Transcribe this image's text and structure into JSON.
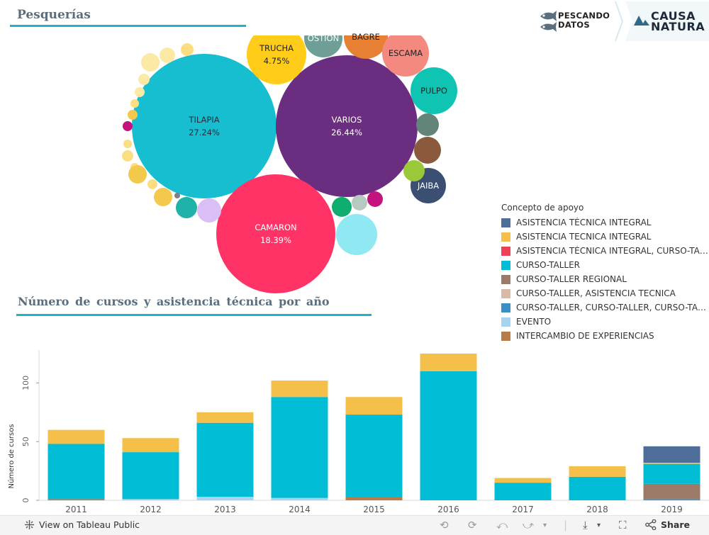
{
  "section1": {
    "title": "Pesquerías"
  },
  "section2": {
    "title": "Número de cursos y asistencia técnica por año"
  },
  "logos": {
    "pescando_line1": "PESCANDO",
    "pescando_line2": "DATOS",
    "causa_line1": "CAUSA",
    "causa_line2": "NATURA"
  },
  "bubbles": [
    {
      "name": "TILAPIA",
      "pct": "27.24%",
      "color": "#17becf",
      "label_color": "#1a3040"
    },
    {
      "name": "VARIOS",
      "pct": "26.44%",
      "color": "#6b2d80",
      "label_color": "#ffffff"
    },
    {
      "name": "CAMARON",
      "pct": "18.39%",
      "color": "#ff3366",
      "label_color": "#ffffff"
    },
    {
      "name": "TRUCHA",
      "pct": "4.75%",
      "color": "#ffcc1a",
      "label_color": "#222222"
    },
    {
      "name": "OSTION",
      "pct": "",
      "color": "#6e9e96",
      "label_color": "#ffffff"
    },
    {
      "name": "BAGRE",
      "pct": "",
      "color": "#e88034",
      "label_color": "#222222"
    },
    {
      "name": "ESCAMA",
      "pct": "",
      "color": "#f4897f",
      "label_color": "#222222"
    },
    {
      "name": "PULPO",
      "pct": "",
      "color": "#10c4b4",
      "label_color": "#222222"
    },
    {
      "name": "JAIBA",
      "pct": "",
      "color": "#3a4f72",
      "label_color": "#ffffff"
    }
  ],
  "small_bubble_colors": [
    "#fce9a6",
    "#fbdd82",
    "#f2c94c",
    "#e5b938",
    "#c4137f",
    "#1fb2a8",
    "#d9bff5",
    "#8b5a3c",
    "#638478",
    "#9bc83a",
    "#8fe8f2",
    "#0fae6e",
    "#b8c9c0",
    "#cc9a00",
    "#f7d26b",
    "#7f7f7f"
  ],
  "legend": {
    "title": "Concepto de apoyo",
    "items": [
      {
        "label": "ASISTENCIA TÉCNICA INTEGRAL",
        "color": "#4e6e99"
      },
      {
        "label": "ASISTENCIA TECNICA INTEGRAL",
        "color": "#f5c04a"
      },
      {
        "label": "ASISTENCIA TÉCNICA INTEGRAL, CURSO-TALLER...",
        "color": "#ef4155"
      },
      {
        "label": "CURSO-TALLER",
        "color": "#00bcd4"
      },
      {
        "label": "CURSO-TALLER REGIONAL",
        "color": "#9c7a68"
      },
      {
        "label": "CURSO-TALLER, ASISTENCIA TECNICA",
        "color": "#d9b9a7"
      },
      {
        "label": "CURSO-TALLER, CURSO-TALLER, CURSO-TALLER",
        "color": "#3c8fc4"
      },
      {
        "label": "EVENTO",
        "color": "#a6d3ef"
      },
      {
        "label": "INTERCAMBIO DE EXPERIENCIAS",
        "color": "#b87b46"
      }
    ]
  },
  "chart_data": {
    "type": "bar",
    "stacked": true,
    "title": "Número de cursos y asistencia técnica por año",
    "xlabel": "",
    "ylabel": "Número de cursos",
    "ylim": [
      0,
      128
    ],
    "yticks": [
      0,
      50,
      100
    ],
    "categories": [
      "2011",
      "2012",
      "2013",
      "2014",
      "2015",
      "2016",
      "2017",
      "2018",
      "2019"
    ],
    "series": [
      {
        "name": "INTERCAMBIO DE EXPERIENCIAS",
        "color": "#b87b46",
        "values": [
          1,
          0,
          0,
          0,
          3,
          0,
          0,
          0,
          0
        ]
      },
      {
        "name": "EVENTO",
        "color": "#a6d3ef",
        "values": [
          0,
          1,
          3,
          2,
          0,
          0,
          0,
          0,
          0
        ]
      },
      {
        "name": "CURSO-TALLER, CURSO-TALLER, CURSO-TALLER",
        "color": "#3c8fc4",
        "values": [
          0,
          0,
          0,
          0,
          0,
          0,
          0,
          0,
          1
        ]
      },
      {
        "name": "CURSO-TALLER, ASISTENCIA TECNICA",
        "color": "#d9b9a7",
        "values": [
          0,
          0,
          0,
          0,
          0,
          0,
          0,
          0,
          0
        ]
      },
      {
        "name": "CURSO-TALLER REGIONAL",
        "color": "#9c7a68",
        "values": [
          0,
          0,
          0,
          0,
          0,
          0,
          0,
          0,
          13
        ]
      },
      {
        "name": "CURSO-TALLER",
        "color": "#00bcd4",
        "values": [
          47,
          40,
          63,
          86,
          70,
          110,
          15,
          20,
          17
        ]
      },
      {
        "name": "ASISTENCIA TÉCNICA INTEGRAL, CURSO-TALLER...",
        "color": "#ef4155",
        "values": [
          0,
          0,
          0,
          0,
          0,
          0,
          0,
          0,
          0
        ]
      },
      {
        "name": "ASISTENCIA TECNICA INTEGRAL",
        "color": "#f5c04a",
        "values": [
          12,
          12,
          9,
          14,
          15,
          15,
          4,
          9,
          1
        ]
      },
      {
        "name": "ASISTENCIA TÉCNICA INTEGRAL",
        "color": "#4e6e99",
        "values": [
          0,
          0,
          0,
          0,
          0,
          0,
          0,
          0,
          14
        ]
      }
    ]
  },
  "footer": {
    "view_label": "View on Tableau Public",
    "share_label": "Share"
  }
}
